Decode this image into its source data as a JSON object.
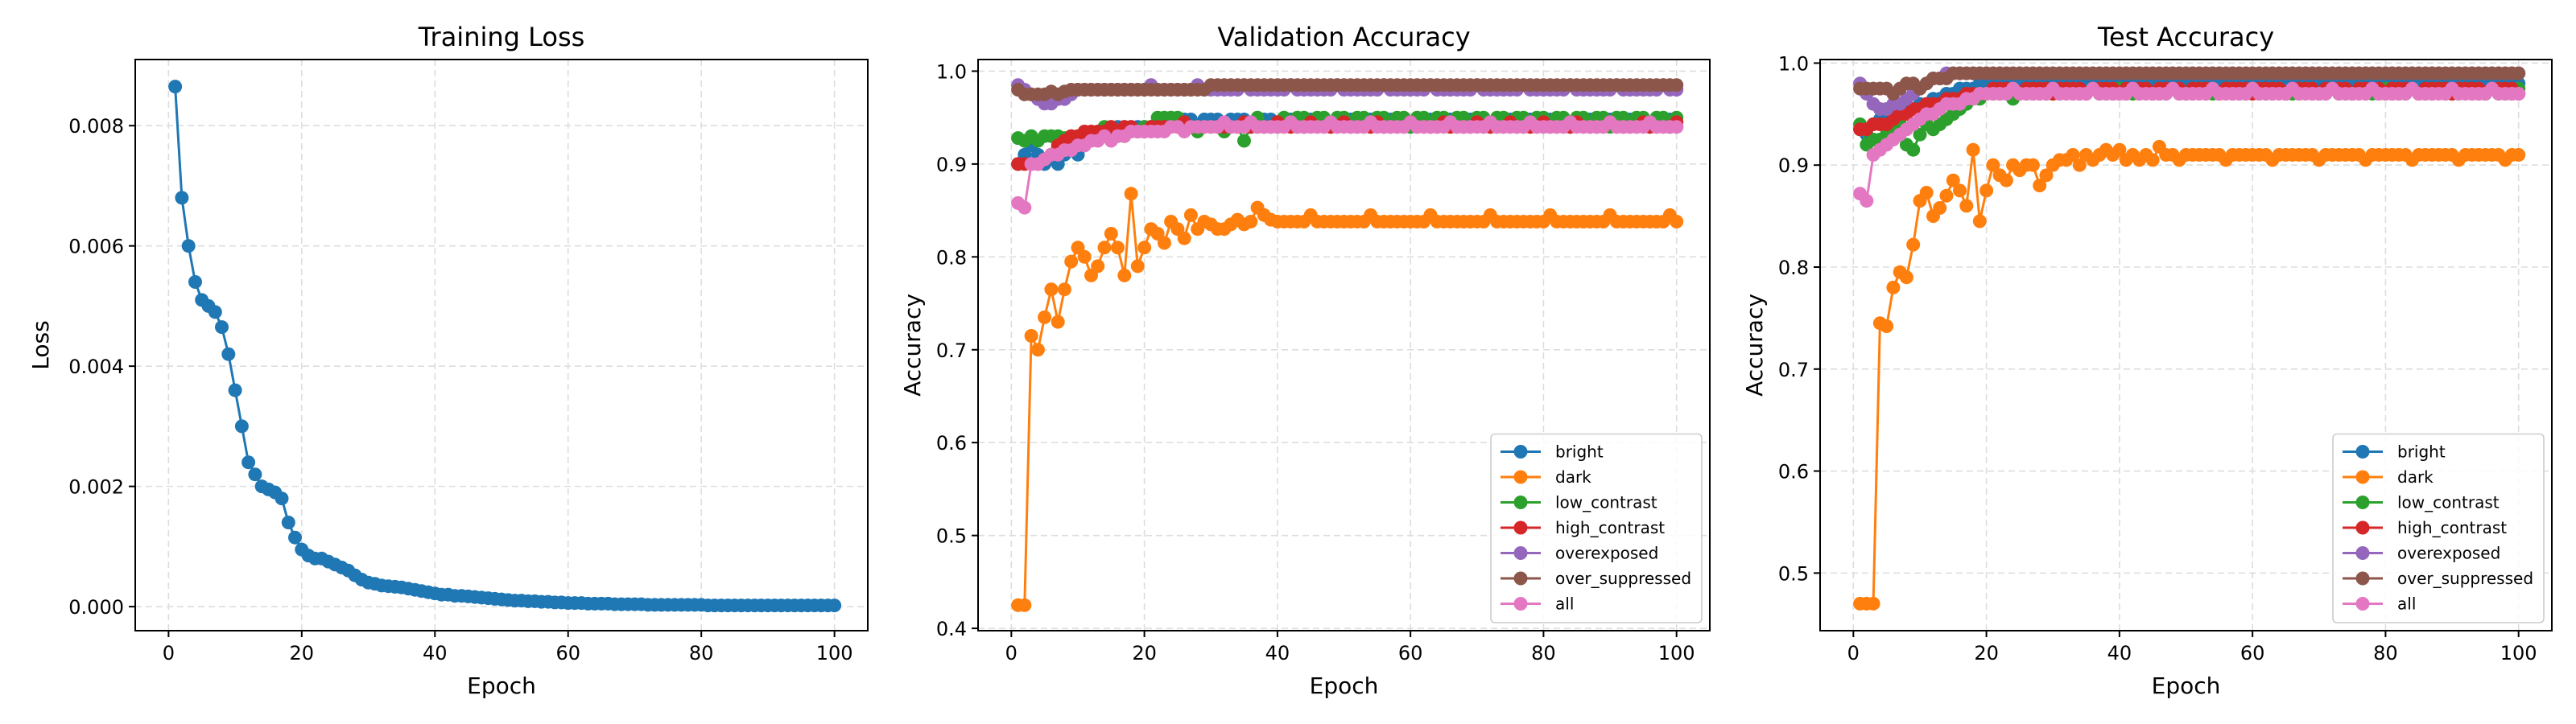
{
  "figure": {
    "background": "#ffffff"
  },
  "colors": {
    "bright": "#1f77b4",
    "dark": "#ff7f0e",
    "low_contrast": "#2ca02c",
    "high_contrast": "#d62728",
    "overexposed": "#9467bd",
    "over_suppressed": "#8c564b",
    "all": "#e377c2"
  },
  "chart_data": [
    {
      "type": "line",
      "title": "Training Loss",
      "xlabel": "Epoch",
      "ylabel": "Loss",
      "xlim": [
        -5,
        105
      ],
      "ylim": [
        -0.0004,
        0.0091
      ],
      "xticks": [
        0,
        20,
        40,
        60,
        80,
        100
      ],
      "yticks": [
        0.0,
        0.002,
        0.004,
        0.006,
        0.008
      ],
      "ytick_labels": [
        "0.000",
        "0.002",
        "0.004",
        "0.006",
        "0.008"
      ],
      "grid": true,
      "legend": "none",
      "series": [
        {
          "color": "#1f77b4",
          "x": [
            1,
            2,
            3,
            4,
            5,
            6,
            7,
            8,
            9,
            10,
            11,
            12,
            13,
            14,
            15,
            16,
            17,
            18,
            19,
            20,
            21,
            22,
            23,
            24,
            25,
            26,
            27,
            28,
            29,
            30,
            31,
            32,
            33,
            34,
            35,
            36,
            37,
            38,
            39,
            40,
            41,
            42,
            43,
            44,
            45,
            46,
            47,
            48,
            49,
            50,
            51,
            52,
            53,
            54,
            55,
            56,
            57,
            58,
            59,
            60,
            61,
            62,
            63,
            64,
            65,
            66,
            67,
            68,
            69,
            70,
            71,
            72,
            73,
            74,
            75,
            76,
            77,
            78,
            79,
            80,
            81,
            82,
            83,
            84,
            85,
            86,
            87,
            88,
            89,
            90,
            91,
            92,
            93,
            94,
            95,
            96,
            97,
            98,
            99,
            100
          ],
          "y": [
            0.00865,
            0.0068,
            0.006,
            0.0054,
            0.0051,
            0.005,
            0.0049,
            0.00465,
            0.0042,
            0.0036,
            0.003,
            0.0024,
            0.0022,
            0.002,
            0.00195,
            0.0019,
            0.0018,
            0.0014,
            0.00115,
            0.00095,
            0.00085,
            0.0008,
            0.0008,
            0.00075,
            0.0007,
            0.00065,
            0.0006,
            0.00052,
            0.00045,
            0.0004,
            0.00038,
            0.00035,
            0.00034,
            0.00033,
            0.00032,
            0.0003,
            0.00028,
            0.00026,
            0.00024,
            0.00022,
            0.0002,
            0.0002,
            0.00018,
            0.00018,
            0.00017,
            0.00016,
            0.00015,
            0.00014,
            0.00013,
            0.00012,
            0.00011,
            0.0001,
            0.0001,
            9e-05,
            9e-05,
            8e-05,
            8e-05,
            7e-05,
            7e-05,
            6e-05,
            6e-05,
            6e-05,
            5e-05,
            5e-05,
            5e-05,
            5e-05,
            4e-05,
            4e-05,
            4e-05,
            4e-05,
            4e-05,
            3e-05,
            3e-05,
            3e-05,
            3e-05,
            3e-05,
            3e-05,
            3e-05,
            3e-05,
            3e-05,
            2e-05,
            2e-05,
            2e-05,
            2e-05,
            2e-05,
            2e-05,
            2e-05,
            2e-05,
            2e-05,
            2e-05,
            2e-05,
            2e-05,
            2e-05,
            2e-05,
            2e-05,
            2e-05,
            2e-05,
            2e-05,
            2e-05,
            2e-05
          ]
        }
      ]
    },
    {
      "type": "line",
      "title": "Validation Accuracy",
      "xlabel": "Epoch",
      "ylabel": "Accuracy",
      "xlim": [
        -5,
        105
      ],
      "ylim": [
        0.3975,
        1.0125
      ],
      "xticks": [
        0,
        20,
        40,
        60,
        80,
        100
      ],
      "yticks": [
        0.4,
        0.5,
        0.6,
        0.7,
        0.8,
        0.9,
        1.0
      ],
      "ytick_labels": [
        "0.4",
        "0.5",
        "0.6",
        "0.7",
        "0.8",
        "0.9",
        "1.0"
      ],
      "grid": true,
      "legend": "lower right",
      "series": [
        {
          "name": "bright",
          "color": "#1f77b4",
          "start": [
            0.9,
            0.91,
            0.92,
            0.91,
            0.9,
            0.91,
            0.9,
            0.91,
            0.92,
            0.91,
            0.92,
            0.93,
            0.93,
            0.93,
            0.93,
            0.94,
            0.94,
            0.94,
            0.94,
            0.94,
            0.94,
            0.94,
            0.94,
            0.94,
            0.94
          ],
          "late": 0.948,
          "alt": 0.94,
          "step": 4
        },
        {
          "name": "dark",
          "color": "#ff7f0e",
          "start": [
            0.425,
            0.425,
            0.715,
            0.7,
            0.735,
            0.765,
            0.73,
            0.765,
            0.795,
            0.81,
            0.8,
            0.78,
            0.79,
            0.81,
            0.825,
            0.81,
            0.78,
            0.868,
            0.79,
            0.81,
            0.83,
            0.825,
            0.815,
            0.838,
            0.83,
            0.82,
            0.845,
            0.83,
            0.838,
            0.835,
            0.83,
            0.83,
            0.835,
            0.84,
            0.835,
            0.838,
            0.853,
            0.845,
            0.84,
            0.838
          ],
          "late": 0.838,
          "alt": 0.845,
          "step": 9
        },
        {
          "name": "low_contrast",
          "color": "#2ca02c",
          "start": [
            0.928,
            0.925,
            0.93,
            0.925,
            0.93,
            0.93,
            0.93,
            0.928,
            0.93,
            0.93,
            0.93,
            0.93,
            0.935,
            0.94,
            0.94,
            0.93,
            0.93,
            0.935,
            0.935,
            0.94,
            0.94,
            0.95,
            0.95,
            0.95,
            0.95,
            0.94,
            0.94,
            0.935,
            0.94,
            0.94,
            0.94,
            0.935,
            0.94,
            0.94,
            0.925,
            0.94,
            0.95,
            0.94,
            0.94,
            0.94
          ],
          "late": 0.95,
          "alt": 0.94,
          "step": 3
        },
        {
          "name": "high_contrast",
          "color": "#d62728",
          "start": [
            0.9,
            0.9,
            0.9,
            0.9,
            0.905,
            0.91,
            0.92,
            0.925,
            0.93,
            0.93,
            0.935,
            0.935,
            0.935,
            0.935,
            0.94,
            0.935,
            0.94,
            0.94,
            0.935,
            0.935,
            0.94,
            0.94,
            0.94,
            0.94,
            0.94,
            0.945,
            0.94,
            0.94,
            0.94,
            0.94
          ],
          "late": 0.94,
          "alt": 0.945,
          "step": 5
        },
        {
          "name": "overexposed",
          "color": "#9467bd",
          "start": [
            0.985,
            0.98,
            0.975,
            0.97,
            0.965,
            0.965,
            0.97,
            0.97,
            0.975,
            0.98,
            0.98,
            0.98,
            0.98,
            0.98,
            0.98
          ],
          "late": 0.98,
          "alt": 0.985,
          "step": 7
        },
        {
          "name": "over_suppressed",
          "color": "#8c564b",
          "start": [
            0.98,
            0.975,
            0.975,
            0.975,
            0.975,
            0.978,
            0.975,
            0.978,
            0.98,
            0.98,
            0.98,
            0.98,
            0.98,
            0.98,
            0.98,
            0.98,
            0.98,
            0.98,
            0.98,
            0.98,
            0.98,
            0.98,
            0.98,
            0.98,
            0.98,
            0.98,
            0.98,
            0.98,
            0.98,
            0.985
          ],
          "late": 0.985,
          "alt": 0.985,
          "step": 99
        },
        {
          "name": "all",
          "color": "#e377c2",
          "start": [
            0.858,
            0.853,
            0.9,
            0.9,
            0.905,
            0.91,
            0.91,
            0.915,
            0.915,
            0.92,
            0.92,
            0.925,
            0.925,
            0.93,
            0.925,
            0.93,
            0.93,
            0.935,
            0.935,
            0.935,
            0.935,
            0.935,
            0.935,
            0.94,
            0.94,
            0.935,
            0.94,
            0.94,
            0.94,
            0.94,
            0.94,
            0.945,
            0.94,
            0.94,
            0.94
          ],
          "late": 0.94,
          "alt": 0.945,
          "step": 6
        }
      ]
    },
    {
      "type": "line",
      "title": "Test Accuracy",
      "xlabel": "Epoch",
      "ylabel": "Accuracy",
      "xlim": [
        -5,
        105
      ],
      "ylim": [
        0.4435,
        1.0035
      ],
      "xticks": [
        0,
        20,
        40,
        60,
        80,
        100
      ],
      "yticks": [
        0.5,
        0.6,
        0.7,
        0.8,
        0.9,
        1.0
      ],
      "ytick_labels": [
        "0.5",
        "0.6",
        "0.7",
        "0.8",
        "0.9",
        "1.0"
      ],
      "grid": true,
      "legend": "lower right",
      "series": [
        {
          "name": "bright",
          "color": "#1f77b4",
          "start": [
            0.935,
            0.93,
            0.94,
            0.945,
            0.945,
            0.95,
            0.95,
            0.955,
            0.955,
            0.96,
            0.96,
            0.965,
            0.965,
            0.97,
            0.97,
            0.975,
            0.975,
            0.975,
            0.98,
            0.98,
            0.98,
            0.985
          ],
          "late": 0.985,
          "alt": 0.98,
          "step": 5
        },
        {
          "name": "dark",
          "color": "#ff7f0e",
          "start": [
            0.47,
            0.47,
            0.47,
            0.745,
            0.742,
            0.78,
            0.795,
            0.79,
            0.822,
            0.865,
            0.873,
            0.85,
            0.858,
            0.87,
            0.885,
            0.875,
            0.86,
            0.915,
            0.845,
            0.875,
            0.9,
            0.89,
            0.885,
            0.9,
            0.895,
            0.9,
            0.9,
            0.88,
            0.89,
            0.9,
            0.905,
            0.905,
            0.91,
            0.9,
            0.91,
            0.905,
            0.91,
            0.915,
            0.91,
            0.915,
            0.905,
            0.91,
            0.905,
            0.91,
            0.905,
            0.918,
            0.91
          ],
          "late": 0.91,
          "alt": 0.905,
          "step": 7
        },
        {
          "name": "low_contrast",
          "color": "#2ca02c",
          "start": [
            0.94,
            0.92,
            0.925,
            0.925,
            0.93,
            0.935,
            0.94,
            0.92,
            0.915,
            0.93,
            0.94,
            0.935,
            0.94,
            0.945,
            0.95,
            0.955,
            0.96,
            0.965,
            0.965,
            0.97,
            0.97,
            0.97,
            0.97,
            0.965,
            0.97,
            0.97,
            0.97,
            0.97
          ],
          "late": 0.97,
          "alt": 0.975,
          "step": 4
        },
        {
          "name": "high_contrast",
          "color": "#d62728",
          "start": [
            0.935,
            0.935,
            0.94,
            0.94,
            0.94,
            0.945,
            0.95,
            0.95,
            0.955,
            0.955,
            0.96,
            0.96,
            0.96,
            0.965,
            0.965,
            0.965,
            0.97,
            0.97,
            0.97,
            0.97
          ],
          "late": 0.975,
          "alt": 0.97,
          "step": 5
        },
        {
          "name": "overexposed",
          "color": "#9467bd",
          "start": [
            0.98,
            0.97,
            0.96,
            0.955,
            0.955,
            0.96,
            0.96,
            0.965,
            0.97,
            0.975,
            0.98,
            0.985,
            0.985,
            0.99,
            0.99,
            0.99,
            0.99,
            0.99
          ],
          "late": 0.99,
          "alt": 0.99,
          "step": 99
        },
        {
          "name": "over_suppressed",
          "color": "#8c564b",
          "start": [
            0.975,
            0.975,
            0.975,
            0.975,
            0.975,
            0.97,
            0.975,
            0.98,
            0.98,
            0.975,
            0.98,
            0.985,
            0.985,
            0.985,
            0.99
          ],
          "late": 0.99,
          "alt": 0.99,
          "step": 99
        },
        {
          "name": "all",
          "color": "#e377c2",
          "start": [
            0.872,
            0.865,
            0.91,
            0.915,
            0.92,
            0.925,
            0.93,
            0.935,
            0.94,
            0.945,
            0.95,
            0.95,
            0.955,
            0.96,
            0.96,
            0.96,
            0.965,
            0.965,
            0.97,
            0.97
          ],
          "late": 0.97,
          "alt": 0.975,
          "step": 6
        }
      ]
    }
  ]
}
